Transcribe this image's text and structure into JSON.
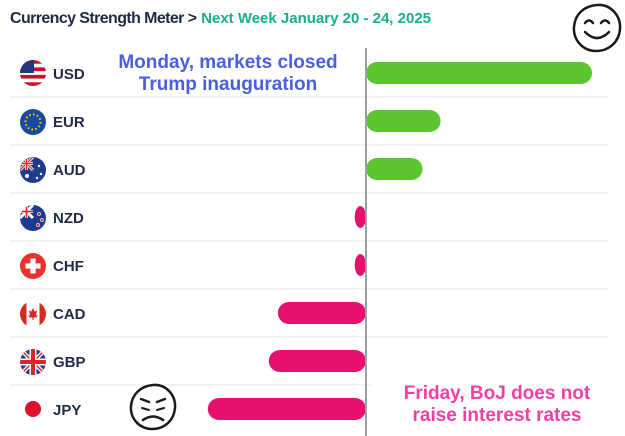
{
  "header": {
    "title": "Currency Strength Meter",
    "separator": ">",
    "subtitle": "Next Week January 20 - 24, 2025"
  },
  "annotations": {
    "monday": [
      "Monday, markets closed",
      "Trump inauguration"
    ],
    "friday": [
      "Friday, BoJ does not",
      "raise interest rates"
    ]
  },
  "chart_data": {
    "type": "bar",
    "orientation": "horizontal",
    "categories": [
      "USD",
      "EUR",
      "AUD",
      "NZD",
      "CHF",
      "CAD",
      "GBP",
      "JPY"
    ],
    "values": [
      100,
      33,
      25,
      -5,
      -5,
      -39,
      -43,
      -70
    ],
    "xlim": [
      -100,
      100
    ],
    "grid": true,
    "colors": {
      "positive": "#5bc52e",
      "negative": "#e8106f",
      "zero_line": "#9aa0a6",
      "grid": "#e6e6e6"
    }
  },
  "icons": [
    "usd-flag-icon",
    "eur-flag-icon",
    "aud-flag-icon",
    "nzd-flag-icon",
    "chf-flag-icon",
    "cad-flag-icon",
    "gbp-flag-icon",
    "jpy-flag-icon",
    "smiley-face-icon",
    "sad-face-icon"
  ]
}
